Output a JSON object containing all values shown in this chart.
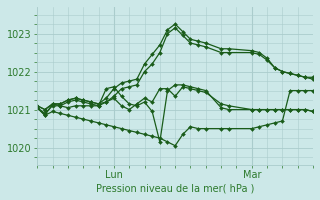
{
  "bg_color": "#cce8e8",
  "grid_color": "#aacccc",
  "line_color": "#1a5c1a",
  "xlabel": "Pression niveau de la mer( hPa )",
  "tick_color": "#2d7a2d",
  "ylabel_ticks": [
    1020,
    1021,
    1022,
    1023
  ],
  "xlim": [
    0,
    108
  ],
  "ylim": [
    1019.55,
    1023.7
  ],
  "lun_x": 30,
  "mar_x": 84,
  "series": [
    [
      0,
      1021.1,
      3,
      1021.0,
      6,
      1021.15,
      9,
      1021.15,
      12,
      1021.25,
      15,
      1021.3,
      18,
      1021.25,
      21,
      1021.2,
      24,
      1021.15,
      27,
      1021.2,
      30,
      1021.35,
      33,
      1021.55,
      36,
      1021.6,
      39,
      1021.65,
      42,
      1022.0,
      45,
      1022.2,
      48,
      1022.5,
      51,
      1023.0,
      54,
      1023.15,
      57,
      1022.95,
      60,
      1022.75,
      63,
      1022.7,
      66,
      1022.65,
      72,
      1022.5,
      75,
      1022.5,
      84,
      1022.5,
      87,
      1022.45,
      90,
      1022.3,
      93,
      1022.1,
      96,
      1022.0,
      99,
      1021.95,
      102,
      1021.9,
      105,
      1021.85,
      108,
      1021.85
    ],
    [
      0,
      1021.1,
      3,
      1021.0,
      6,
      1021.15,
      9,
      1021.15,
      12,
      1021.25,
      15,
      1021.3,
      18,
      1021.25,
      21,
      1021.2,
      24,
      1021.15,
      27,
      1021.3,
      30,
      1021.55,
      33,
      1021.7,
      36,
      1021.75,
      39,
      1021.8,
      42,
      1022.2,
      45,
      1022.45,
      48,
      1022.7,
      51,
      1023.1,
      54,
      1023.25,
      57,
      1023.05,
      60,
      1022.85,
      63,
      1022.8,
      66,
      1022.75,
      72,
      1022.6,
      75,
      1022.6,
      84,
      1022.55,
      87,
      1022.5,
      90,
      1022.35,
      93,
      1022.1,
      96,
      1022.0,
      99,
      1021.95,
      102,
      1021.9,
      105,
      1021.85,
      108,
      1021.8
    ],
    [
      0,
      1021.05,
      3,
      1020.9,
      6,
      1021.1,
      9,
      1021.1,
      12,
      1021.2,
      15,
      1021.25,
      18,
      1021.2,
      21,
      1021.15,
      24,
      1021.1,
      27,
      1021.2,
      30,
      1021.3,
      33,
      1021.1,
      36,
      1021.0,
      39,
      1021.15,
      42,
      1021.3,
      45,
      1021.2,
      48,
      1021.55,
      51,
      1021.55,
      54,
      1021.35,
      57,
      1021.6,
      60,
      1021.55,
      63,
      1021.5,
      66,
      1021.45,
      72,
      1021.15,
      75,
      1021.1,
      84,
      1021.0,
      87,
      1021.0,
      90,
      1021.0,
      93,
      1021.0,
      96,
      1021.0,
      99,
      1021.0,
      102,
      1021.0,
      105,
      1021.0,
      108,
      1020.95
    ],
    [
      0,
      1021.05,
      3,
      1020.85,
      6,
      1020.95,
      9,
      1020.9,
      12,
      1020.85,
      15,
      1020.8,
      18,
      1020.75,
      21,
      1020.7,
      24,
      1020.65,
      27,
      1020.6,
      30,
      1020.55,
      33,
      1020.5,
      36,
      1020.45,
      39,
      1020.4,
      42,
      1020.35,
      45,
      1020.3,
      48,
      1020.25,
      51,
      1020.15,
      54,
      1020.05,
      57,
      1020.35,
      60,
      1020.55,
      63,
      1020.5,
      66,
      1020.5,
      72,
      1020.5,
      75,
      1020.5,
      84,
      1020.5,
      87,
      1020.55,
      90,
      1020.6,
      93,
      1020.65,
      96,
      1020.7,
      99,
      1021.5,
      102,
      1021.5,
      105,
      1021.5,
      108,
      1021.5
    ],
    [
      0,
      1021.05,
      3,
      1020.85,
      6,
      1021.15,
      9,
      1021.1,
      12,
      1021.05,
      15,
      1021.1,
      18,
      1021.1,
      21,
      1021.1,
      24,
      1021.1,
      27,
      1021.55,
      30,
      1021.6,
      33,
      1021.35,
      36,
      1021.15,
      39,
      1021.1,
      42,
      1021.2,
      45,
      1020.95,
      48,
      1020.15,
      51,
      1021.5,
      54,
      1021.65,
      57,
      1021.65,
      60,
      1021.6,
      63,
      1021.55,
      66,
      1021.5,
      72,
      1021.05,
      75,
      1021.0,
      84,
      1021.0,
      87,
      1021.0,
      90,
      1021.0,
      93,
      1021.0,
      96,
      1021.0,
      99,
      1021.0,
      102,
      1021.0,
      105,
      1021.0,
      108,
      1020.95
    ]
  ]
}
